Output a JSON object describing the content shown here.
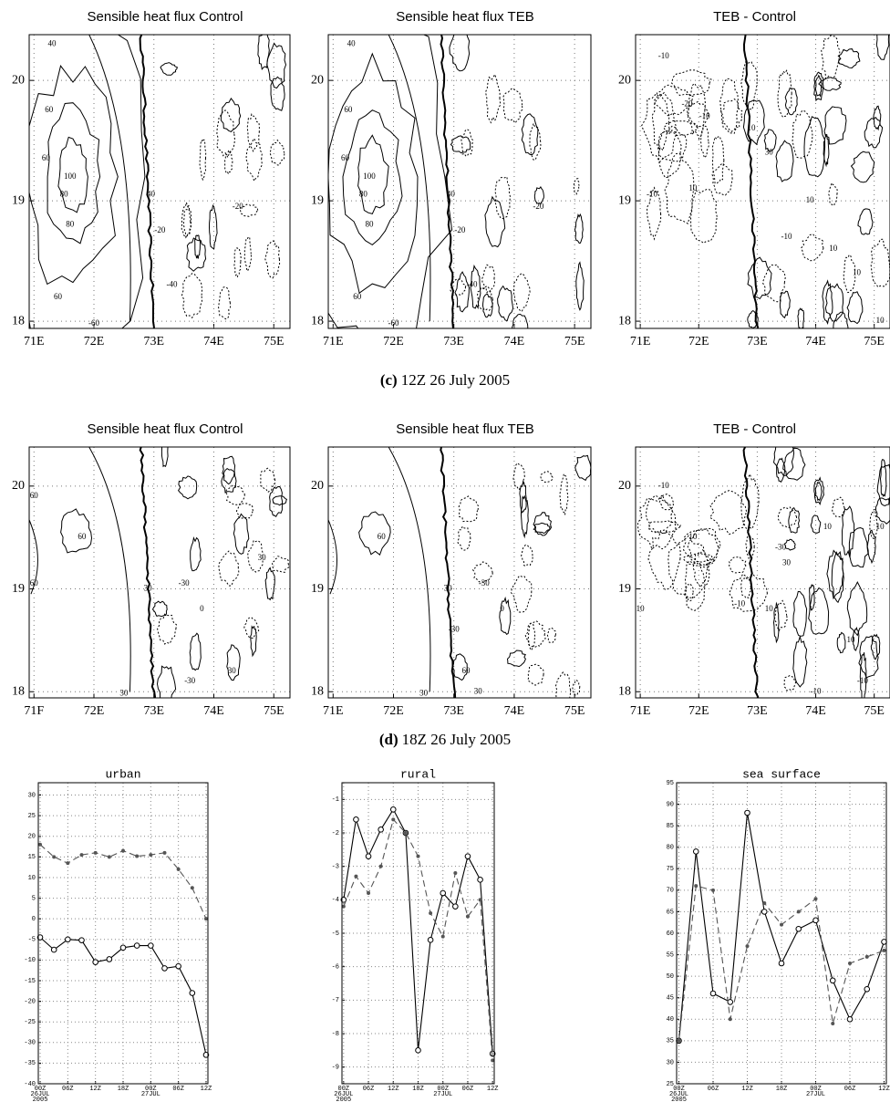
{
  "chart_data": [
    {
      "type": "contour",
      "title": "Sensible heat flux Control",
      "xlim": [
        70.92,
        75.27
      ],
      "ylim": [
        17.94,
        20.38
      ],
      "xticks": [
        {
          "value": 71,
          "label": "71E"
        },
        {
          "value": 72,
          "label": "72E"
        },
        {
          "value": 73,
          "label": "73E"
        },
        {
          "value": 74,
          "label": "74E"
        },
        {
          "value": 75,
          "label": "75E"
        }
      ],
      "yticks": [
        18,
        19,
        20
      ],
      "grid": true,
      "contour_labels": [
        "40",
        "60",
        "60",
        "100",
        "80",
        "80",
        "40",
        "-20",
        "-20",
        "-40",
        "60",
        "-60"
      ]
    },
    {
      "type": "contour",
      "title": "Sensible heat flux TEB",
      "xlim": [
        70.92,
        75.27
      ],
      "ylim": [
        17.94,
        20.38
      ],
      "xticks": [
        {
          "value": 71,
          "label": "71E"
        },
        {
          "value": 72,
          "label": "72E"
        },
        {
          "value": 73,
          "label": "73E"
        },
        {
          "value": 74,
          "label": "74E"
        },
        {
          "value": 75,
          "label": "75E"
        }
      ],
      "yticks": [
        18,
        19,
        20
      ],
      "grid": true,
      "contour_labels": [
        "40",
        "60",
        "60",
        "100",
        "80",
        "80",
        "40",
        "-20",
        "-20",
        "-40",
        "60",
        "-60"
      ]
    },
    {
      "type": "contour",
      "title": "TEB - Control",
      "xlim": [
        70.92,
        75.27
      ],
      "ylim": [
        17.94,
        20.38
      ],
      "xticks": [
        {
          "value": 71,
          "label": "71E"
        },
        {
          "value": 72,
          "label": "72E"
        },
        {
          "value": 73,
          "label": "73E"
        },
        {
          "value": 74,
          "label": "74E"
        },
        {
          "value": 75,
          "label": "75E"
        }
      ],
      "yticks": [
        18,
        19,
        20
      ],
      "grid": true,
      "contour_labels": [
        "-10",
        "-20",
        "-10",
        "10",
        "-10",
        "10",
        "30",
        "10",
        "10",
        "10",
        "10",
        "-10"
      ]
    },
    {
      "type": "contour",
      "title": "Sensible heat flux Control",
      "xlim": [
        70.92,
        75.27
      ],
      "ylim": [
        17.94,
        20.38
      ],
      "xticks": [
        {
          "value": 71,
          "label": "71F"
        },
        {
          "value": 72,
          "label": "72E"
        },
        {
          "value": 73,
          "label": "73E"
        },
        {
          "value": 74,
          "label": "74E"
        },
        {
          "value": 75,
          "label": "75E"
        }
      ],
      "yticks": [
        18,
        19,
        20
      ],
      "grid": true,
      "contour_labels": [
        "60",
        "60",
        "60",
        "30",
        "-30",
        "30",
        "0",
        "-30",
        "30",
        "30"
      ]
    },
    {
      "type": "contour",
      "title": "Sensible heat flux TEB",
      "xlim": [
        70.92,
        75.27
      ],
      "ylim": [
        17.94,
        20.38
      ],
      "xticks": [
        {
          "value": 71,
          "label": "71E"
        },
        {
          "value": 72,
          "label": "72E"
        },
        {
          "value": 73,
          "label": "73E"
        },
        {
          "value": 74,
          "label": "74E"
        },
        {
          "value": 75,
          "label": "75E"
        }
      ],
      "yticks": [
        18,
        19,
        20
      ],
      "grid": true,
      "contour_labels": [
        "60",
        "30",
        "-30",
        "30",
        "0",
        "60",
        "-30",
        "30"
      ]
    },
    {
      "type": "contour",
      "title": "TEB - Control",
      "xlim": [
        70.92,
        75.27
      ],
      "ylim": [
        17.94,
        20.38
      ],
      "xticks": [
        {
          "value": 71,
          "label": "71E"
        },
        {
          "value": 72,
          "label": "72E"
        },
        {
          "value": 73,
          "label": "73E"
        },
        {
          "value": 74,
          "label": "74E"
        },
        {
          "value": 75,
          "label": "75E"
        }
      ],
      "yticks": [
        18,
        19,
        20
      ],
      "grid": true,
      "contour_labels": [
        "-10",
        "10",
        "10",
        "-10",
        "10",
        "-30",
        "30",
        "10",
        "-10",
        "10",
        "-10",
        "10"
      ]
    },
    {
      "type": "line",
      "title": "urban",
      "x": [
        0,
        3,
        6,
        9,
        12,
        15,
        18,
        21,
        24,
        27,
        30,
        33,
        36
      ],
      "xlim": [
        -0.4,
        36.4
      ],
      "ylim": [
        -40,
        33
      ],
      "xticks": [
        {
          "value": 0,
          "label": "00Z\n26JUL\n2005"
        },
        {
          "value": 6,
          "label": "06Z"
        },
        {
          "value": 12,
          "label": "12Z"
        },
        {
          "value": 18,
          "label": "18Z"
        },
        {
          "value": 24,
          "label": "00Z\n27JUL"
        },
        {
          "value": 30,
          "label": "06Z"
        },
        {
          "value": 36,
          "label": "12Z"
        }
      ],
      "yticks": [
        -40,
        -35,
        -30,
        -25,
        -20,
        -15,
        -10,
        -5,
        0,
        5,
        10,
        15,
        20,
        25,
        30
      ],
      "grid": true,
      "series": [
        {
          "color": "#000000",
          "line_style": "solid",
          "marker": "circle",
          "values": [
            -4.5,
            -7.5,
            -5,
            -5.2,
            -10.5,
            -9.8,
            -7,
            -6.5,
            -6.5,
            -12,
            -11.5,
            -18,
            -33
          ]
        },
        {
          "color": "#555555",
          "line_style": "dashed",
          "marker": "star",
          "values": [
            18,
            15,
            13.5,
            15.5,
            16,
            15,
            16.5,
            15.2,
            15.5,
            16,
            12,
            7.5,
            0
          ]
        }
      ]
    },
    {
      "type": "line",
      "title": "rural",
      "x": [
        0,
        3,
        6,
        9,
        12,
        15,
        18,
        21,
        24,
        27,
        30,
        33,
        36
      ],
      "xlim": [
        -0.4,
        36.4
      ],
      "ylim": [
        -9.5,
        -0.5
      ],
      "xticks": [
        {
          "value": 0,
          "label": "00Z\n26JUL\n2005"
        },
        {
          "value": 6,
          "label": "06Z"
        },
        {
          "value": 12,
          "label": "12Z"
        },
        {
          "value": 18,
          "label": "18Z"
        },
        {
          "value": 24,
          "label": "00Z\n27JUL"
        },
        {
          "value": 30,
          "label": "06Z"
        },
        {
          "value": 36,
          "label": "12Z"
        }
      ],
      "yticks": [
        -9,
        -8,
        -7,
        -6,
        -5,
        -4,
        -3,
        -2,
        -1
      ],
      "grid": true,
      "series": [
        {
          "color": "#000000",
          "line_style": "solid",
          "marker": "circle",
          "values": [
            -4,
            -1.6,
            -2.7,
            -1.9,
            -1.3,
            -2,
            -8.5,
            -5.2,
            -3.8,
            -4.2,
            -2.7,
            -3.4,
            -8.6
          ]
        },
        {
          "color": "#555555",
          "line_style": "dashed",
          "marker": "star",
          "values": [
            -4.2,
            -3.3,
            -3.8,
            -3,
            -1.6,
            -2,
            -2.7,
            -4.4,
            -5.1,
            -3.2,
            -4.5,
            -4,
            -8.8
          ]
        }
      ]
    },
    {
      "type": "line",
      "title": "sea surface",
      "x": [
        0,
        3,
        6,
        9,
        12,
        15,
        18,
        21,
        24,
        27,
        30,
        33,
        36
      ],
      "xlim": [
        -0.4,
        36.4
      ],
      "ylim": [
        25,
        95
      ],
      "xticks": [
        {
          "value": 0,
          "label": "00Z\n26JUL\n2005"
        },
        {
          "value": 6,
          "label": "06Z"
        },
        {
          "value": 12,
          "label": "12Z"
        },
        {
          "value": 18,
          "label": "18Z"
        },
        {
          "value": 24,
          "label": "00Z\n27JUL"
        },
        {
          "value": 30,
          "label": "06Z"
        },
        {
          "value": 36,
          "label": "12Z"
        }
      ],
      "yticks": [
        25,
        30,
        35,
        40,
        45,
        50,
        55,
        60,
        65,
        70,
        75,
        80,
        85,
        90,
        95
      ],
      "grid": true,
      "series": [
        {
          "color": "#000000",
          "line_style": "solid",
          "marker": "circle",
          "values": [
            35,
            79,
            46,
            44,
            88,
            65,
            53,
            61,
            63,
            49,
            40,
            47,
            58
          ]
        },
        {
          "color": "#555555",
          "line_style": "dashed",
          "marker": "star",
          "values": [
            35,
            71,
            70,
            40,
            57,
            67,
            62,
            65,
            68,
            39,
            53,
            54.5,
            56
          ]
        }
      ]
    }
  ],
  "captions": [
    {
      "label": "(c)",
      "text": "12Z 26 July 2005"
    },
    {
      "label": "(d)",
      "text": "18Z 26 July 2005"
    }
  ]
}
